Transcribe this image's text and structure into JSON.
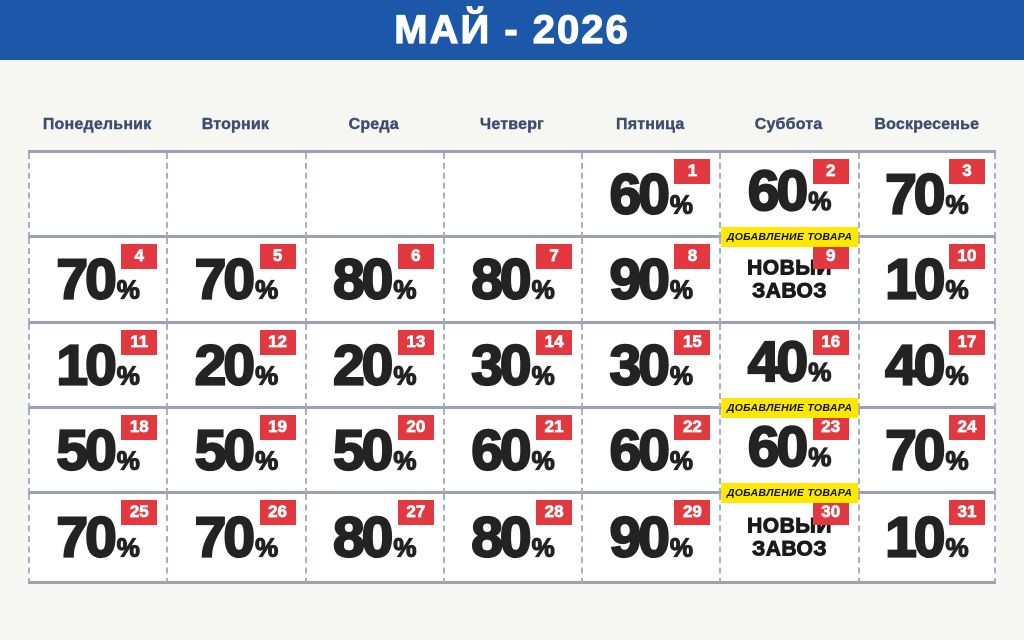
{
  "title": "МАЙ - 2026",
  "weekdays": [
    "Понедельник",
    "Вторник",
    "Среда",
    "Четверг",
    "Пятница",
    "Суббота",
    "Воскресенье"
  ],
  "percent_sign": "%",
  "calendar": {
    "month": "МАЙ",
    "year": "2026",
    "leading_empty_cells": 4,
    "days": [
      {
        "day": 1,
        "discount_percent": 60
      },
      {
        "day": 2,
        "discount_percent": 60,
        "note": "ДОБАВЛЕНИЕ ТОВАРА"
      },
      {
        "day": 3,
        "discount_percent": 70
      },
      {
        "day": 4,
        "discount_percent": 70
      },
      {
        "day": 5,
        "discount_percent": 70
      },
      {
        "day": 6,
        "discount_percent": 80
      },
      {
        "day": 7,
        "discount_percent": 80
      },
      {
        "day": 8,
        "discount_percent": 90
      },
      {
        "day": 9,
        "label": "НОВЫЙ ЗАВОЗ"
      },
      {
        "day": 10,
        "discount_percent": 10
      },
      {
        "day": 11,
        "discount_percent": 10
      },
      {
        "day": 12,
        "discount_percent": 20
      },
      {
        "day": 13,
        "discount_percent": 20
      },
      {
        "day": 14,
        "discount_percent": 30
      },
      {
        "day": 15,
        "discount_percent": 30
      },
      {
        "day": 16,
        "discount_percent": 40,
        "note": "ДОБАВЛЕНИЕ ТОВАРА"
      },
      {
        "day": 17,
        "discount_percent": 40
      },
      {
        "day": 18,
        "discount_percent": 50
      },
      {
        "day": 19,
        "discount_percent": 50
      },
      {
        "day": 20,
        "discount_percent": 50
      },
      {
        "day": 21,
        "discount_percent": 60
      },
      {
        "day": 22,
        "discount_percent": 60
      },
      {
        "day": 23,
        "discount_percent": 60,
        "note": "ДОБАВЛЕНИЕ ТОВАРА"
      },
      {
        "day": 24,
        "discount_percent": 70
      },
      {
        "day": 25,
        "discount_percent": 70
      },
      {
        "day": 26,
        "discount_percent": 70
      },
      {
        "day": 27,
        "discount_percent": 80
      },
      {
        "day": 28,
        "discount_percent": 80
      },
      {
        "day": 29,
        "discount_percent": 90
      },
      {
        "day": 30,
        "label": "НОВЫЙ ЗАВОЗ"
      },
      {
        "day": 31,
        "discount_percent": 10
      }
    ]
  },
  "colors": {
    "header_bg": "#1d57a9",
    "day_badge_bg": "#e23940",
    "day_badge_text": "#ffffff",
    "note_bg": "#ffe800",
    "weekday_text": "#3e4c6f",
    "number_text": "#232323",
    "grid_line": "#9aa2b2",
    "grid_dash": "#a9b1c1"
  }
}
